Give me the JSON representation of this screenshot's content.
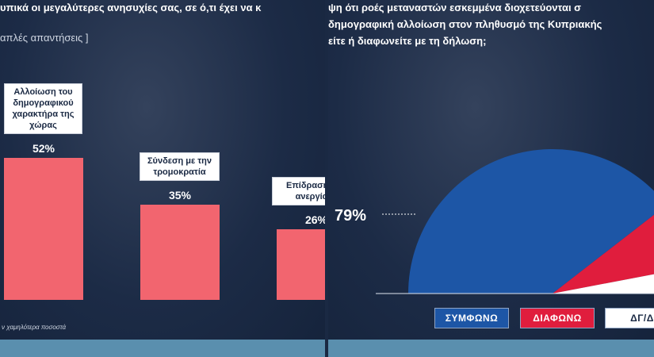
{
  "chart_data": [
    {
      "type": "bar",
      "title": "υπικά οι μεγαλύτερες ανησυχίες σας, σε ό,τι έχει να κ",
      "subtitle": "απλές απαντήσεις ]",
      "footnote": "ν χαμηλότερα ποσοστά",
      "categories": [
        "Αλλοίωση του δημογραφικού χαρακτήρα της χώρας",
        "Σύνδεση με την τρομοκρατία",
        "Επίδραση σ ανεργία"
      ],
      "values": [
        52,
        35,
        26
      ],
      "value_labels": [
        "52%",
        "35%",
        "26%"
      ],
      "color": "#f2656f",
      "ylim": [
        0,
        100
      ]
    },
    {
      "type": "pie",
      "title": [
        "ψη ότι ροές μεταναστών εσκεμμένα διοχετεύονται σ",
        "δημογραφική αλλοίωση στον πληθυσμό της Κυπριακής",
        "είτε ή διαφωνείτε με τη δήλωση;"
      ],
      "categories": [
        "ΣΥΜΦΩΝΩ",
        "ΔΙΑΦΩΝΩ",
        "ΔΓ/Δ"
      ],
      "values": [
        79,
        15,
        6
      ],
      "value_labels": [
        "79%",
        null,
        null
      ],
      "colors": [
        "#1d56a6",
        "#e01d3d",
        "#ffffff"
      ]
    }
  ]
}
